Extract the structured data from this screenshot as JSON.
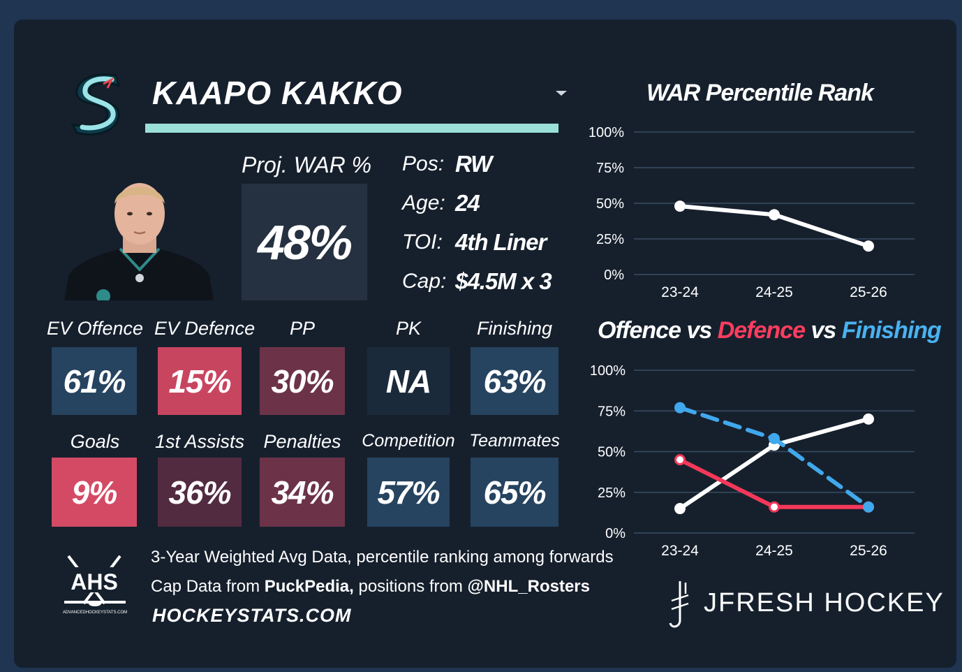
{
  "player": {
    "name": "KAAPO KAKKO"
  },
  "war": {
    "label": "Proj. WAR %",
    "value": "48%"
  },
  "info": [
    {
      "key": "Pos:",
      "value": "RW"
    },
    {
      "key": "Age:",
      "value": "24"
    },
    {
      "key": "TOI:",
      "value": "4th Liner"
    },
    {
      "key": "Cap:",
      "value": "$4.5M x 3"
    }
  ],
  "stats_row1": [
    {
      "label": "EV Offence",
      "value": "61%",
      "color": "#26435f"
    },
    {
      "label": "EV Defence",
      "value": "15%",
      "color": "#c84560"
    },
    {
      "label": "PP",
      "value": "30%",
      "color": "#6c3348"
    },
    {
      "label": "PK",
      "value": "NA",
      "color": "#1b2a3b"
    },
    {
      "label": "Finishing",
      "value": "63%",
      "color": "#26435f"
    }
  ],
  "stats_row2": [
    {
      "label": "Goals",
      "value": "9%",
      "color": "#d44a64"
    },
    {
      "label": "1st Assists",
      "value": "36%",
      "color": "#522b40"
    },
    {
      "label": "Penalties",
      "value": "34%",
      "color": "#6c3348"
    },
    {
      "label": "Competition",
      "value": "57%",
      "color": "#26435f"
    },
    {
      "label": "Teammates",
      "value": "65%",
      "color": "#26435f"
    }
  ],
  "footer": {
    "line1": "3-Year Weighted Avg Data, percentile ranking among forwards",
    "line2_a": "Cap Data from ",
    "line2_b": "PuckPedia,",
    "line2_c": " positions from ",
    "line2_d": "@NHL_Rosters",
    "site": "HOCKEYSTATS.COM",
    "ahs_logo": "AHS",
    "ahs_small": "ADVANCEDHOCKEYSTATS.COM",
    "brand": "JFRESH HOCKEY"
  },
  "chart_data": [
    {
      "type": "line",
      "title": "WAR Percentile Rank",
      "x": [
        "23-24",
        "24-25",
        "25-26"
      ],
      "y_ticks": [
        "100%",
        "75%",
        "50%",
        "25%",
        "0%"
      ],
      "ylim": [
        0,
        100
      ],
      "series": [
        {
          "values": [
            48,
            42,
            20
          ],
          "color": "#ffffff"
        }
      ]
    },
    {
      "type": "line",
      "title_parts": [
        "Offence",
        "vs",
        "Defence",
        "vs",
        "Finishing"
      ],
      "title_colors": [
        "#ffffff",
        "#ffffff",
        "#ff3d5e",
        "#ffffff",
        "#4ab2f0"
      ],
      "x": [
        "23-24",
        "24-25",
        "25-26"
      ],
      "y_ticks": [
        "100%",
        "75%",
        "50%",
        "25%",
        "0%"
      ],
      "ylim": [
        0,
        100
      ],
      "series": [
        {
          "name": "Offence",
          "values": [
            15,
            54,
            70
          ],
          "color": "#ffffff",
          "dash": false
        },
        {
          "name": "Defence",
          "values": [
            45,
            16,
            16
          ],
          "color": "#f4385a",
          "dash": false
        },
        {
          "name": "Finishing",
          "values": [
            77,
            58,
            16
          ],
          "color": "#40a8ec",
          "dash": true
        }
      ]
    }
  ]
}
